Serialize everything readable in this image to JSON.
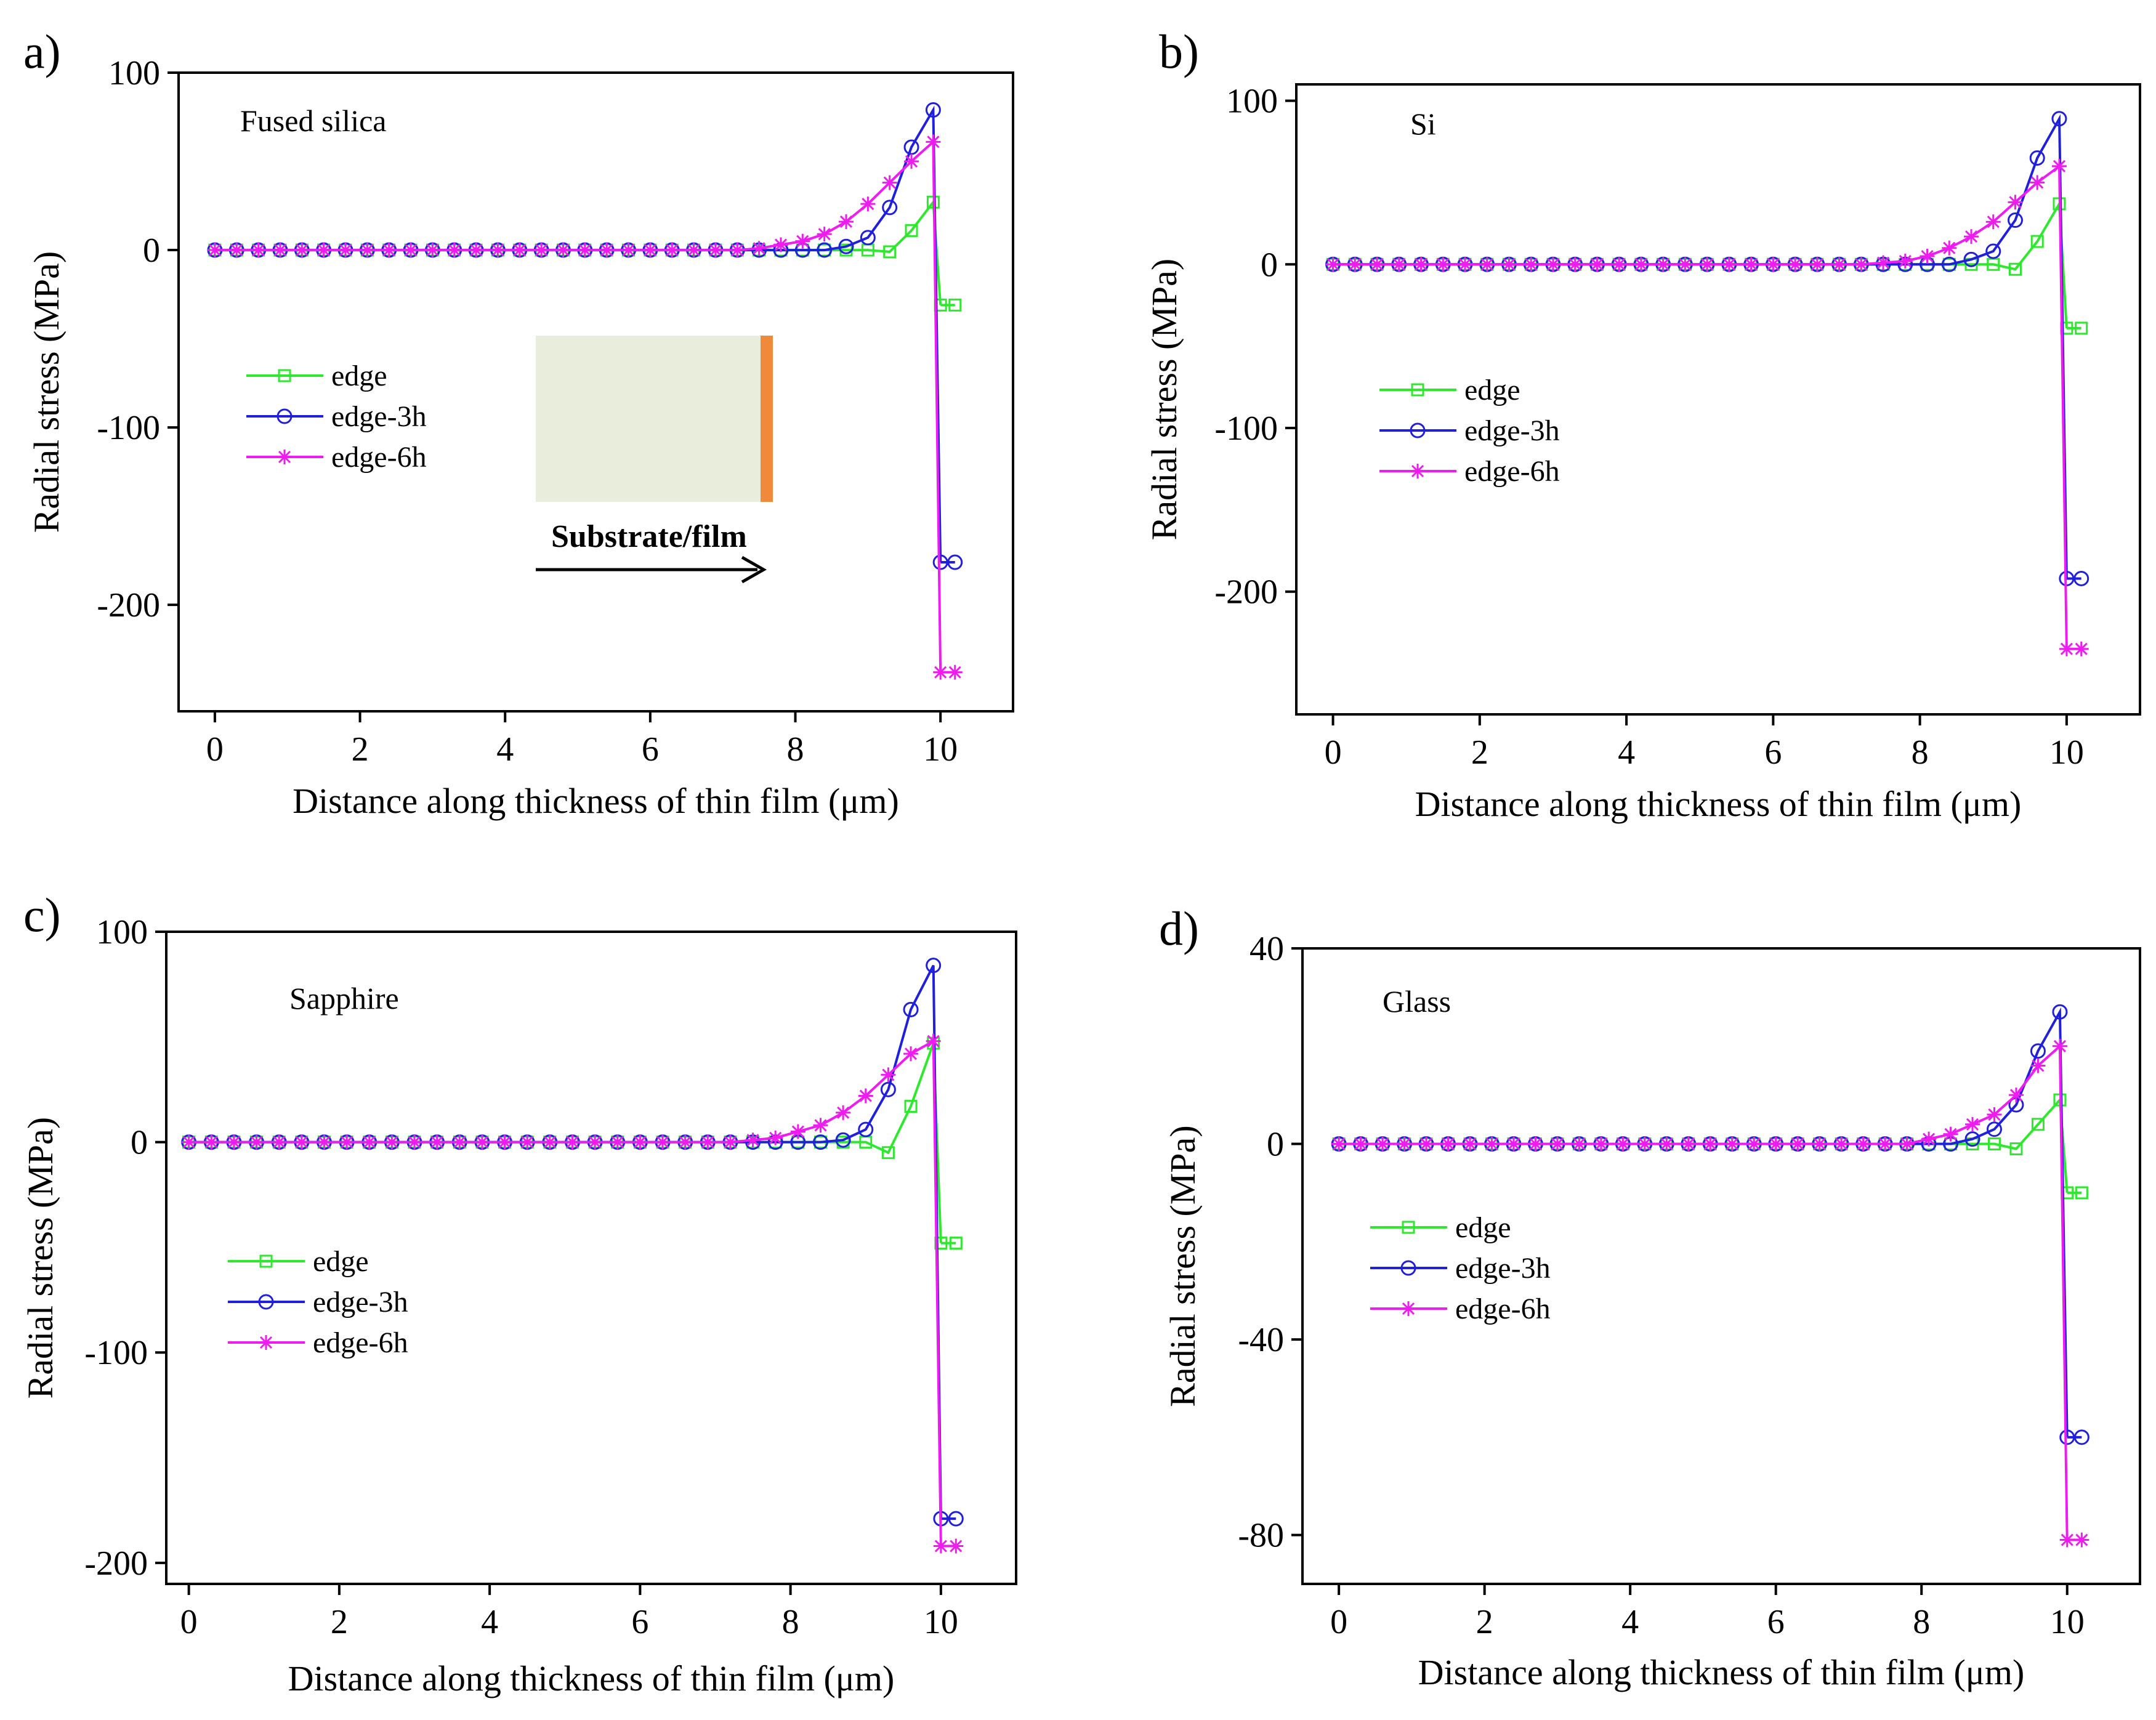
{
  "figure": {
    "colors": {
      "edge": "#2ee82e",
      "edge-3h": "#1f1fdc",
      "edge-6h": "#ee1cee",
      "inset_substrate": "#e9eedc",
      "inset_film": "#ef8a3c"
    }
  },
  "chart_data": [
    {
      "type": "line",
      "panel_label": "a)",
      "title": "Fused silica",
      "xlabel": "Distance along thickness of thin film (μm)",
      "ylabel": "Radial stress (MPa)",
      "xlim": [
        -0.5,
        11.0
      ],
      "ylim": [
        -260,
        100
      ],
      "xticks": [
        0,
        2,
        4,
        6,
        8,
        10
      ],
      "yticks": [
        -200,
        -100,
        0,
        100
      ],
      "ytick_labels": [
        "-200",
        "-100",
        "0",
        "100"
      ],
      "legend": [
        "edge",
        "edge-3h",
        "edge-6h"
      ],
      "inset_label": "Substrate/film",
      "series": [
        {
          "name": "edge",
          "x": [
            0,
            0.3,
            0.6,
            0.9,
            1.2,
            1.5,
            1.8,
            2.1,
            2.4,
            2.7,
            3.0,
            3.3,
            3.6,
            3.9,
            4.2,
            4.5,
            4.8,
            5.1,
            5.4,
            5.7,
            6.0,
            6.3,
            6.6,
            6.9,
            7.2,
            7.5,
            7.8,
            8.1,
            8.4,
            8.7,
            9.0,
            9.3,
            9.6,
            9.9,
            10.0,
            10.2
          ],
          "values": [
            0,
            0,
            0,
            0,
            0,
            0,
            0,
            0,
            0,
            0,
            0,
            0,
            0,
            0,
            0,
            0,
            0,
            0,
            0,
            0,
            0,
            0,
            0,
            0,
            0,
            0,
            0,
            0,
            0,
            0,
            0,
            -1,
            11,
            27,
            -31,
            -31
          ]
        },
        {
          "name": "edge-3h",
          "x": [
            0,
            0.3,
            0.6,
            0.9,
            1.2,
            1.5,
            1.8,
            2.1,
            2.4,
            2.7,
            3.0,
            3.3,
            3.6,
            3.9,
            4.2,
            4.5,
            4.8,
            5.1,
            5.4,
            5.7,
            6.0,
            6.3,
            6.6,
            6.9,
            7.2,
            7.5,
            7.8,
            8.1,
            8.4,
            8.7,
            9.0,
            9.3,
            9.6,
            9.9,
            10.0,
            10.2
          ],
          "values": [
            0,
            0,
            0,
            0,
            0,
            0,
            0,
            0,
            0,
            0,
            0,
            0,
            0,
            0,
            0,
            0,
            0,
            0,
            0,
            0,
            0,
            0,
            0,
            0,
            0,
            0,
            0,
            0,
            0,
            2,
            7,
            24,
            58,
            79,
            -176,
            -176
          ]
        },
        {
          "name": "edge-6h",
          "x": [
            0,
            0.3,
            0.6,
            0.9,
            1.2,
            1.5,
            1.8,
            2.1,
            2.4,
            2.7,
            3.0,
            3.3,
            3.6,
            3.9,
            4.2,
            4.5,
            4.8,
            5.1,
            5.4,
            5.7,
            6.0,
            6.3,
            6.6,
            6.9,
            7.2,
            7.5,
            7.8,
            8.1,
            8.4,
            8.7,
            9.0,
            9.3,
            9.6,
            9.9,
            10.0,
            10.2
          ],
          "values": [
            0,
            0,
            0,
            0,
            0,
            0,
            0,
            0,
            0,
            0,
            0,
            0,
            0,
            0,
            0,
            0,
            0,
            0,
            0,
            0,
            0,
            0,
            0,
            0,
            0,
            1,
            3,
            5,
            9,
            16,
            26,
            38,
            50,
            61,
            -238,
            -238
          ]
        }
      ]
    },
    {
      "type": "line",
      "panel_label": "b)",
      "title": "Si",
      "xlabel": "Distance along thickness of thin film (μm)",
      "ylabel": "Radial stress (MPa)",
      "xlim": [
        -0.5,
        11.0
      ],
      "ylim": [
        -275,
        110
      ],
      "xticks": [
        0,
        2,
        4,
        6,
        8,
        10
      ],
      "yticks": [
        -200,
        -100,
        0,
        100
      ],
      "ytick_labels": [
        "-200",
        "-100",
        "0",
        "100"
      ],
      "legend": [
        "edge",
        "edge-3h",
        "edge-6h"
      ],
      "series": [
        {
          "name": "edge",
          "x": [
            0,
            0.3,
            0.6,
            0.9,
            1.2,
            1.5,
            1.8,
            2.1,
            2.4,
            2.7,
            3.0,
            3.3,
            3.6,
            3.9,
            4.2,
            4.5,
            4.8,
            5.1,
            5.4,
            5.7,
            6.0,
            6.3,
            6.6,
            6.9,
            7.2,
            7.5,
            7.8,
            8.1,
            8.4,
            8.7,
            9.0,
            9.3,
            9.6,
            9.9,
            10.0,
            10.2
          ],
          "values": [
            0,
            0,
            0,
            0,
            0,
            0,
            0,
            0,
            0,
            0,
            0,
            0,
            0,
            0,
            0,
            0,
            0,
            0,
            0,
            0,
            0,
            0,
            0,
            0,
            0,
            0,
            0,
            0,
            0,
            0,
            0,
            -3,
            14,
            37,
            -39,
            -39
          ]
        },
        {
          "name": "edge-3h",
          "x": [
            0,
            0.3,
            0.6,
            0.9,
            1.2,
            1.5,
            1.8,
            2.1,
            2.4,
            2.7,
            3.0,
            3.3,
            3.6,
            3.9,
            4.2,
            4.5,
            4.8,
            5.1,
            5.4,
            5.7,
            6.0,
            6.3,
            6.6,
            6.9,
            7.2,
            7.5,
            7.8,
            8.1,
            8.4,
            8.7,
            9.0,
            9.3,
            9.6,
            9.9,
            10.0,
            10.2
          ],
          "values": [
            0,
            0,
            0,
            0,
            0,
            0,
            0,
            0,
            0,
            0,
            0,
            0,
            0,
            0,
            0,
            0,
            0,
            0,
            0,
            0,
            0,
            0,
            0,
            0,
            0,
            0,
            0,
            0,
            0,
            3,
            8,
            27,
            65,
            89,
            -192,
            -192
          ]
        },
        {
          "name": "edge-6h",
          "x": [
            0,
            0.3,
            0.6,
            0.9,
            1.2,
            1.5,
            1.8,
            2.1,
            2.4,
            2.7,
            3.0,
            3.3,
            3.6,
            3.9,
            4.2,
            4.5,
            4.8,
            5.1,
            5.4,
            5.7,
            6.0,
            6.3,
            6.6,
            6.9,
            7.2,
            7.5,
            7.8,
            8.1,
            8.4,
            8.7,
            9.0,
            9.3,
            9.6,
            9.9,
            10.0,
            10.2
          ],
          "values": [
            0,
            0,
            0,
            0,
            0,
            0,
            0,
            0,
            0,
            0,
            0,
            0,
            0,
            0,
            0,
            0,
            0,
            0,
            0,
            0,
            0,
            0,
            0,
            0,
            0,
            1,
            2,
            5,
            10,
            17,
            26,
            38,
            50,
            60,
            -235,
            -235
          ]
        }
      ]
    },
    {
      "type": "line",
      "panel_label": "c)",
      "title": "Sapphire",
      "xlabel": "Distance along thickness of thin film (μm)",
      "ylabel": "Radial stress (MPa)",
      "xlim": [
        -0.3,
        11.0
      ],
      "ylim": [
        -210,
        100
      ],
      "xticks": [
        0,
        2,
        4,
        6,
        8,
        10
      ],
      "yticks": [
        -200,
        -100,
        0,
        100
      ],
      "ytick_labels": [
        "-200",
        "-100",
        "0",
        "100"
      ],
      "legend": [
        "edge",
        "edge-3h",
        "edge-6h"
      ],
      "series": [
        {
          "name": "edge",
          "x": [
            0,
            0.3,
            0.6,
            0.9,
            1.2,
            1.5,
            1.8,
            2.1,
            2.4,
            2.7,
            3.0,
            3.3,
            3.6,
            3.9,
            4.2,
            4.5,
            4.8,
            5.1,
            5.4,
            5.7,
            6.0,
            6.3,
            6.6,
            6.9,
            7.2,
            7.5,
            7.8,
            8.1,
            8.4,
            8.7,
            9.0,
            9.3,
            9.6,
            9.9,
            10.0,
            10.2
          ],
          "values": [
            0,
            0,
            0,
            0,
            0,
            0,
            0,
            0,
            0,
            0,
            0,
            0,
            0,
            0,
            0,
            0,
            0,
            0,
            0,
            0,
            0,
            0,
            0,
            0,
            0,
            0,
            0,
            0,
            0,
            0,
            0,
            -5,
            17,
            47,
            -48,
            -48
          ]
        },
        {
          "name": "edge-3h",
          "x": [
            0,
            0.3,
            0.6,
            0.9,
            1.2,
            1.5,
            1.8,
            2.1,
            2.4,
            2.7,
            3.0,
            3.3,
            3.6,
            3.9,
            4.2,
            4.5,
            4.8,
            5.1,
            5.4,
            5.7,
            6.0,
            6.3,
            6.6,
            6.9,
            7.2,
            7.5,
            7.8,
            8.1,
            8.4,
            8.7,
            9.0,
            9.3,
            9.6,
            9.9,
            10.0,
            10.2
          ],
          "values": [
            0,
            0,
            0,
            0,
            0,
            0,
            0,
            0,
            0,
            0,
            0,
            0,
            0,
            0,
            0,
            0,
            0,
            0,
            0,
            0,
            0,
            0,
            0,
            0,
            0,
            0,
            0,
            0,
            0,
            1,
            6,
            25,
            63,
            84,
            -179,
            -179
          ]
        },
        {
          "name": "edge-6h",
          "x": [
            0,
            0.3,
            0.6,
            0.9,
            1.2,
            1.5,
            1.8,
            2.1,
            2.4,
            2.7,
            3.0,
            3.3,
            3.6,
            3.9,
            4.2,
            4.5,
            4.8,
            5.1,
            5.4,
            5.7,
            6.0,
            6.3,
            6.6,
            6.9,
            7.2,
            7.5,
            7.8,
            8.1,
            8.4,
            8.7,
            9.0,
            9.3,
            9.6,
            9.9,
            10.0,
            10.2
          ],
          "values": [
            0,
            0,
            0,
            0,
            0,
            0,
            0,
            0,
            0,
            0,
            0,
            0,
            0,
            0,
            0,
            0,
            0,
            0,
            0,
            0,
            0,
            0,
            0,
            0,
            0,
            1,
            2,
            5,
            8,
            14,
            22,
            32,
            42,
            48,
            -192,
            -192
          ]
        }
      ]
    },
    {
      "type": "line",
      "panel_label": "d)",
      "title": "Glass",
      "xlabel": "Distance along thickness of thin film (μm)",
      "ylabel": "Radial stress (MPa)",
      "xlim": [
        -0.5,
        11.0
      ],
      "ylim": [
        -90,
        40
      ],
      "xticks": [
        0,
        2,
        4,
        6,
        8,
        10
      ],
      "yticks": [
        -80,
        -40,
        0,
        40
      ],
      "ytick_labels": [
        "-80",
        "-40",
        "0",
        "40"
      ],
      "legend": [
        "edge",
        "edge-3h",
        "edge-6h"
      ],
      "series": [
        {
          "name": "edge",
          "x": [
            0,
            0.3,
            0.6,
            0.9,
            1.2,
            1.5,
            1.8,
            2.1,
            2.4,
            2.7,
            3.0,
            3.3,
            3.6,
            3.9,
            4.2,
            4.5,
            4.8,
            5.1,
            5.4,
            5.7,
            6.0,
            6.3,
            6.6,
            6.9,
            7.2,
            7.5,
            7.8,
            8.1,
            8.4,
            8.7,
            9.0,
            9.3,
            9.6,
            9.9,
            10.0,
            10.2
          ],
          "values": [
            0,
            0,
            0,
            0,
            0,
            0,
            0,
            0,
            0,
            0,
            0,
            0,
            0,
            0,
            0,
            0,
            0,
            0,
            0,
            0,
            0,
            0,
            0,
            0,
            0,
            0,
            0,
            0,
            0,
            0,
            0,
            -1,
            4,
            9,
            -10,
            -10
          ]
        },
        {
          "name": "edge-3h",
          "x": [
            0,
            0.3,
            0.6,
            0.9,
            1.2,
            1.5,
            1.8,
            2.1,
            2.4,
            2.7,
            3.0,
            3.3,
            3.6,
            3.9,
            4.2,
            4.5,
            4.8,
            5.1,
            5.4,
            5.7,
            6.0,
            6.3,
            6.6,
            6.9,
            7.2,
            7.5,
            7.8,
            8.1,
            8.4,
            8.7,
            9.0,
            9.3,
            9.6,
            9.9,
            10.0,
            10.2
          ],
          "values": [
            0,
            0,
            0,
            0,
            0,
            0,
            0,
            0,
            0,
            0,
            0,
            0,
            0,
            0,
            0,
            0,
            0,
            0,
            0,
            0,
            0,
            0,
            0,
            0,
            0,
            0,
            0,
            0,
            0,
            1,
            3,
            8,
            19,
            27,
            -60,
            -60
          ]
        },
        {
          "name": "edge-6h",
          "x": [
            0,
            0.3,
            0.6,
            0.9,
            1.2,
            1.5,
            1.8,
            2.1,
            2.4,
            2.7,
            3.0,
            3.3,
            3.6,
            3.9,
            4.2,
            4.5,
            4.8,
            5.1,
            5.4,
            5.7,
            6.0,
            6.3,
            6.6,
            6.9,
            7.2,
            7.5,
            7.8,
            8.1,
            8.4,
            8.7,
            9.0,
            9.3,
            9.6,
            9.9,
            10.0,
            10.2
          ],
          "values": [
            0,
            0,
            0,
            0,
            0,
            0,
            0,
            0,
            0,
            0,
            0,
            0,
            0,
            0,
            0,
            0,
            0,
            0,
            0,
            0,
            0,
            0,
            0,
            0,
            0,
            0,
            0,
            1,
            2,
            4,
            6,
            10,
            16,
            20,
            -81,
            -81
          ]
        }
      ]
    }
  ]
}
